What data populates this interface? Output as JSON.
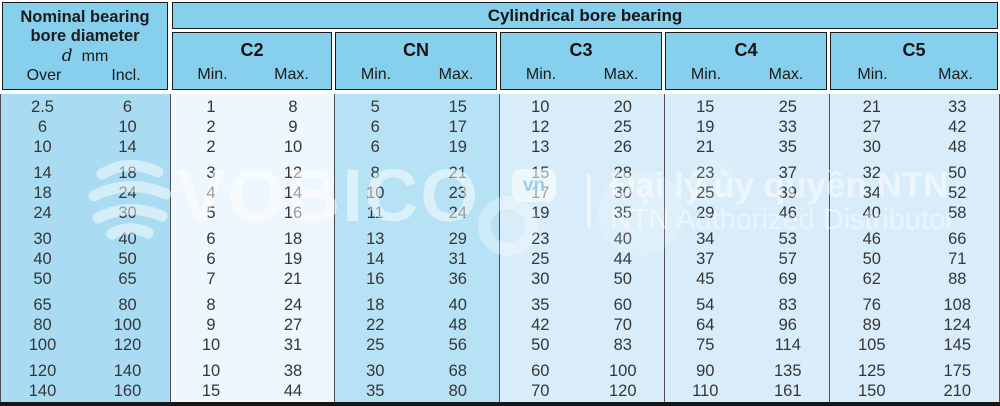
{
  "header": {
    "nominal_line1": "Nominal bearing",
    "nominal_line2": "bore diameter",
    "dim_symbol": "d",
    "dim_unit": "mm",
    "over_label": "Over",
    "incl_label": "Incl.",
    "span_title": "Cylindrical bore bearing",
    "classes": [
      "C2",
      "CN",
      "C3",
      "C4",
      "C5"
    ],
    "min_label": "Min.",
    "max_label": "Max."
  },
  "table": {
    "columns": [
      "Over",
      "Incl.",
      "C2 Min.",
      "C2 Max.",
      "CN Min.",
      "CN Max.",
      "C3 Min.",
      "C3 Max.",
      "C4 Min.",
      "C4 Max.",
      "C5 Min.",
      "C5 Max."
    ],
    "groups": [
      {
        "rows": [
          [
            "2.5",
            "6",
            "1",
            "8",
            "5",
            "15",
            "10",
            "20",
            "15",
            "25",
            "21",
            "33"
          ],
          [
            "6",
            "10",
            "2",
            "9",
            "6",
            "17",
            "12",
            "25",
            "19",
            "33",
            "27",
            "42"
          ],
          [
            "10",
            "14",
            "2",
            "10",
            "6",
            "19",
            "13",
            "26",
            "21",
            "35",
            "30",
            "48"
          ]
        ]
      },
      {
        "rows": [
          [
            "14",
            "18",
            "3",
            "12",
            "8",
            "21",
            "15",
            "28",
            "23",
            "37",
            "32",
            "50"
          ],
          [
            "18",
            "24",
            "4",
            "14",
            "10",
            "23",
            "17",
            "30",
            "25",
            "39",
            "34",
            "52"
          ],
          [
            "24",
            "30",
            "5",
            "16",
            "11",
            "24",
            "19",
            "35",
            "29",
            "46",
            "40",
            "58"
          ]
        ]
      },
      {
        "rows": [
          [
            "30",
            "40",
            "6",
            "18",
            "13",
            "29",
            "23",
            "40",
            "34",
            "53",
            "46",
            "66"
          ],
          [
            "40",
            "50",
            "6",
            "19",
            "14",
            "31",
            "25",
            "44",
            "37",
            "57",
            "50",
            "71"
          ],
          [
            "50",
            "65",
            "7",
            "21",
            "16",
            "36",
            "30",
            "50",
            "45",
            "69",
            "62",
            "88"
          ]
        ]
      },
      {
        "rows": [
          [
            "65",
            "80",
            "8",
            "24",
            "18",
            "40",
            "35",
            "60",
            "54",
            "83",
            "76",
            "108"
          ],
          [
            "80",
            "100",
            "9",
            "27",
            "22",
            "48",
            "42",
            "70",
            "64",
            "96",
            "89",
            "124"
          ],
          [
            "100",
            "120",
            "10",
            "31",
            "25",
            "56",
            "50",
            "83",
            "75",
            "114",
            "105",
            "145"
          ]
        ]
      },
      {
        "rows": [
          [
            "120",
            "140",
            "10",
            "38",
            "30",
            "68",
            "60",
            "100",
            "90",
            "135",
            "125",
            "175"
          ],
          [
            "140",
            "160",
            "15",
            "44",
            "35",
            "80",
            "70",
            "120",
            "110",
            "161",
            "150",
            "210"
          ]
        ]
      }
    ]
  },
  "watermark": {
    "brand": "VOBICO",
    "brand_suffix": "vn",
    "line1": "Đại lý ủy quyền NTN",
    "line2": "NTN Authorized Distributor"
  },
  "colors": {
    "header_bg": "#86cfed",
    "col_d_bg": "#a9dcf3",
    "col_c2_bg": "#eef7fd",
    "col_cn_bg": "#b7e2f5",
    "col_c_bg": "#d8edf9",
    "border_dark": "#1c1c1c",
    "grid_line": "#4e4e4e",
    "bottom_bar": "#161616"
  }
}
